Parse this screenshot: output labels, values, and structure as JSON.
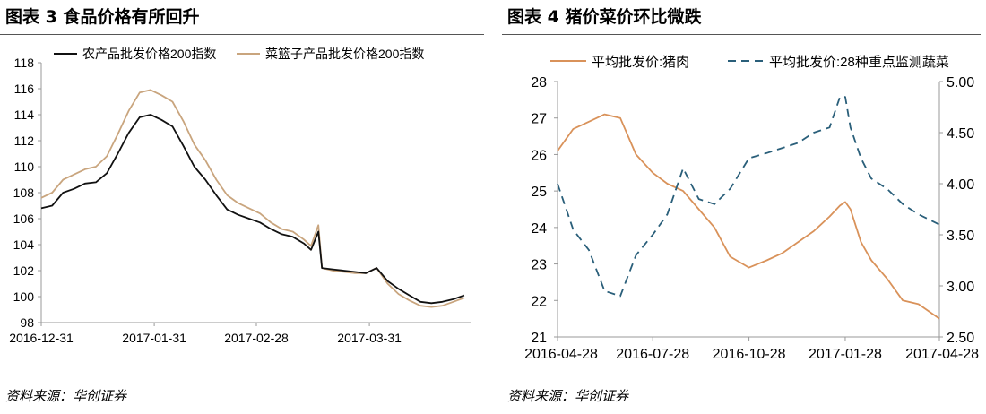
{
  "panels": {
    "left": {
      "title": "图表 3   食品价格有所回升",
      "source": "资料来源：华创证券"
    },
    "right": {
      "title": "图表 4   猪价菜价环比微跌",
      "source": "资料来源：华创证券"
    }
  },
  "chart_data": [
    {
      "type": "line",
      "title": "",
      "xlabel": "",
      "ylabel": "",
      "ylim": [
        98,
        118
      ],
      "yticks": [
        98,
        100,
        102,
        104,
        106,
        108,
        110,
        112,
        114,
        116,
        118
      ],
      "x_tick_labels": [
        "2016-12-31",
        "2017-01-31",
        "2017-02-28",
        "2017-03-31"
      ],
      "x_tick_days": [
        0,
        31,
        59,
        90
      ],
      "grid": false,
      "legend": "top",
      "x": [
        0,
        3,
        6,
        9,
        12,
        15,
        18,
        21,
        24,
        27,
        30,
        33,
        36,
        39,
        42,
        45,
        48,
        51,
        54,
        57,
        60,
        63,
        66,
        69,
        72,
        74,
        76,
        77,
        80,
        83,
        86,
        89,
        92,
        95,
        98,
        101,
        104,
        107,
        110,
        113,
        116
      ],
      "x_dates": [
        "2016-12-31",
        "2017-01-03",
        "2017-01-06",
        "2017-01-09",
        "2017-01-12",
        "2017-01-15",
        "2017-01-18",
        "2017-01-21",
        "2017-01-24",
        "2017-01-27",
        "2017-01-30",
        "2017-02-02",
        "2017-02-05",
        "2017-02-08",
        "2017-02-11",
        "2017-02-14",
        "2017-02-17",
        "2017-02-20",
        "2017-02-23",
        "2017-02-26",
        "2017-03-01",
        "2017-03-04",
        "2017-03-07",
        "2017-03-10",
        "2017-03-13",
        "2017-03-15",
        "2017-03-17",
        "2017-03-18",
        "2017-03-21",
        "2017-03-24",
        "2017-03-27",
        "2017-03-30",
        "2017-04-02",
        "2017-04-05",
        "2017-04-08",
        "2017-04-11",
        "2017-04-14",
        "2017-04-17",
        "2017-04-20",
        "2017-04-23",
        "2017-04-26"
      ],
      "series": [
        {
          "name": "农产品批发价格200指数",
          "color": "#111111",
          "values": [
            106.8,
            107.0,
            108.0,
            108.3,
            108.7,
            108.8,
            109.5,
            111.0,
            112.6,
            113.8,
            114.0,
            113.6,
            113.1,
            111.6,
            110.0,
            109.0,
            107.8,
            106.7,
            106.3,
            106.0,
            105.7,
            105.2,
            104.8,
            104.6,
            104.1,
            103.6,
            105.0,
            102.2,
            102.1,
            102.0,
            101.9,
            101.8,
            102.2,
            101.2,
            100.6,
            100.1,
            99.6,
            99.5,
            99.6,
            99.8,
            100.1
          ]
        },
        {
          "name": "菜篮子产品批发价格200指数",
          "color": "#c9a57e",
          "values": [
            107.6,
            108.0,
            109.0,
            109.4,
            109.8,
            110.0,
            110.8,
            112.5,
            114.3,
            115.7,
            115.9,
            115.5,
            115.0,
            113.5,
            111.7,
            110.5,
            109.0,
            107.8,
            107.2,
            106.8,
            106.4,
            105.7,
            105.2,
            105.0,
            104.4,
            103.9,
            105.5,
            102.2,
            102.0,
            101.9,
            101.8,
            101.8,
            102.2,
            101.0,
            100.2,
            99.7,
            99.3,
            99.2,
            99.3,
            99.6,
            99.9
          ]
        }
      ]
    },
    {
      "type": "line",
      "title": "",
      "xlabel": "",
      "ylabel": "",
      "ylim": [
        21,
        28
      ],
      "yticks": [
        21,
        22,
        23,
        24,
        25,
        26,
        27,
        28
      ],
      "y2lim": [
        2.5,
        5.0
      ],
      "y2ticks": [
        2.5,
        3.0,
        3.5,
        4.0,
        4.5,
        5.0
      ],
      "y2tick_labels": [
        "2.50",
        "3.00",
        "3.50",
        "4.00",
        "4.50",
        "5.00"
      ],
      "x_tick_labels": [
        "2016-04-28",
        "2016-07-28",
        "2016-10-28",
        "2017-01-28",
        "2017-04-28"
      ],
      "x_tick_days": [
        0,
        91,
        183,
        275,
        365
      ],
      "grid": false,
      "legend": "top",
      "x": [
        0,
        15,
        30,
        45,
        60,
        75,
        91,
        105,
        120,
        135,
        150,
        165,
        183,
        200,
        215,
        230,
        245,
        260,
        270,
        275,
        280,
        290,
        300,
        315,
        330,
        345,
        365
      ],
      "x_dates": [
        "2016-04-28",
        "2016-05-13",
        "2016-05-28",
        "2016-06-12",
        "2016-06-27",
        "2016-07-12",
        "2016-07-28",
        "2016-08-11",
        "2016-08-26",
        "2016-09-10",
        "2016-09-25",
        "2016-10-10",
        "2016-10-28",
        "2016-11-14",
        "2016-11-29",
        "2016-12-14",
        "2016-12-29",
        "2017-01-13",
        "2017-01-23",
        "2017-01-28",
        "2017-02-02",
        "2017-02-12",
        "2017-02-22",
        "2017-03-09",
        "2017-03-24",
        "2017-04-08",
        "2017-04-28"
      ],
      "series": [
        {
          "name": "平均批发价:猪肉",
          "axis": "left",
          "dash": false,
          "color": "#d9925a",
          "values": [
            26.1,
            26.7,
            26.9,
            27.1,
            27.0,
            26.0,
            25.5,
            25.2,
            25.0,
            24.5,
            24.0,
            23.2,
            22.9,
            23.1,
            23.3,
            23.6,
            23.9,
            24.3,
            24.6,
            24.7,
            24.5,
            23.6,
            23.1,
            22.6,
            22.0,
            21.9,
            21.5
          ]
        },
        {
          "name": "平均批发价:28种重点监测蔬菜",
          "axis": "right",
          "dash": true,
          "color": "#2a5f7a",
          "values": [
            4.0,
            3.55,
            3.35,
            2.95,
            2.9,
            3.3,
            3.5,
            3.7,
            4.15,
            3.85,
            3.8,
            3.95,
            4.25,
            4.3,
            4.35,
            4.4,
            4.5,
            4.55,
            4.85,
            4.85,
            4.55,
            4.25,
            4.05,
            3.95,
            3.8,
            3.7,
            3.6
          ]
        }
      ]
    }
  ]
}
